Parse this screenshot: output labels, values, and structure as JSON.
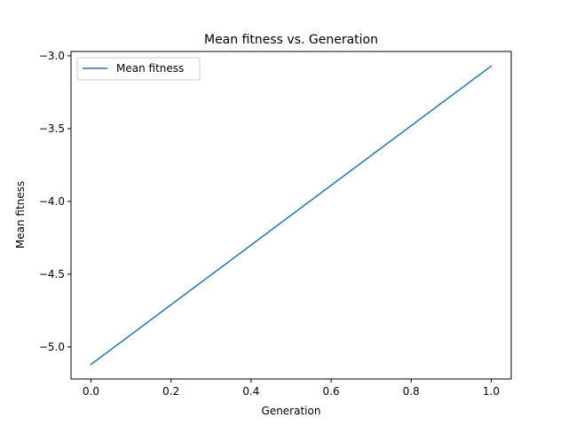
{
  "chart_data": {
    "type": "line",
    "title": "Mean fitness vs. Generation",
    "xlabel": "Generation",
    "ylabel": "Mean fitness",
    "xlim": [
      -0.05,
      1.05
    ],
    "ylim": [
      -5.22,
      -2.97
    ],
    "x_ticks": [
      0.0,
      0.2,
      0.4,
      0.6,
      0.8,
      1.0
    ],
    "x_tick_labels": [
      "0.0",
      "0.2",
      "0.4",
      "0.6",
      "0.8",
      "1.0"
    ],
    "y_ticks": [
      -5.0,
      -4.5,
      -4.0,
      -3.5,
      -3.0
    ],
    "y_tick_labels": [
      "−5.0",
      "−4.5",
      "−4.0",
      "−3.5",
      "−3.0"
    ],
    "grid": false,
    "legend_position": "upper-left",
    "series": [
      {
        "name": "Mean fitness",
        "color": "#1f77b4",
        "x": [
          0.0,
          1.0
        ],
        "y": [
          -5.12,
          -3.07
        ]
      }
    ]
  }
}
